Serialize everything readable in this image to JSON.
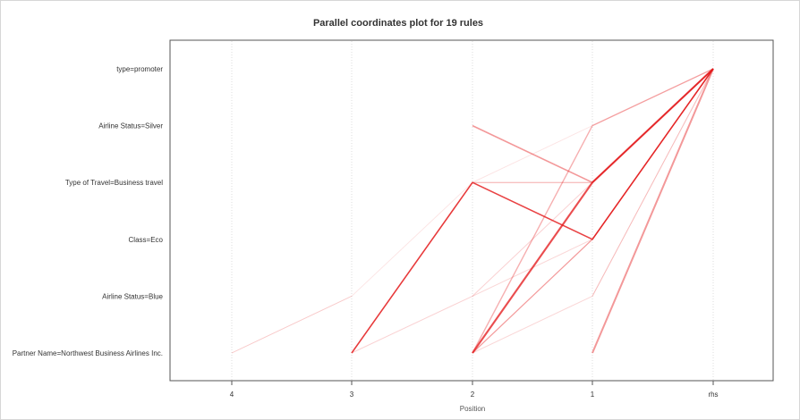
{
  "chart_data": {
    "type": "parallel-coordinates",
    "title": "Parallel coordinates plot for 19 rules",
    "xlabel": "Position",
    "x_positions": [
      "4",
      "3",
      "2",
      "1",
      "rhs"
    ],
    "y_items": [
      "Partner Name=Northwest Business Airlines Inc.",
      "Airline Status=Blue",
      "Class=Eco",
      "Type of Travel=Business travel",
      "Airline Status=Silver",
      "type=promoter"
    ],
    "grid": "vertical",
    "line_color": "#e41a1c",
    "rules": [
      {
        "path": [
          null,
          0,
          3,
          2,
          "rhs"
        ],
        "alpha": 0.75,
        "width": 1.6
      },
      {
        "path": [
          null,
          null,
          0,
          3,
          "rhs"
        ],
        "alpha": 0.7,
        "width": 2.2
      },
      {
        "path": [
          null,
          null,
          4,
          3,
          "rhs"
        ],
        "alpha": 0.45,
        "width": 1.6
      },
      {
        "path": [
          null,
          null,
          null,
          0,
          "rhs"
        ],
        "alpha": 0.45,
        "width": 2.0
      },
      {
        "path": [
          null,
          null,
          0,
          4,
          "rhs"
        ],
        "alpha": 0.35,
        "width": 1.4
      },
      {
        "path": [
          null,
          null,
          0,
          2,
          "rhs"
        ],
        "alpha": 0.3,
        "width": 1.3
      },
      {
        "path": [
          null,
          null,
          null,
          2,
          "rhs"
        ],
        "alpha": 0.3,
        "width": 1.3
      },
      {
        "path": [
          null,
          null,
          0,
          3,
          "rhs"
        ],
        "alpha": 0.3,
        "width": 1.2
      },
      {
        "path": [
          null,
          0,
          1,
          3,
          "rhs"
        ],
        "alpha": 0.2,
        "width": 1.0
      },
      {
        "path": [
          null,
          0,
          3,
          3,
          "rhs"
        ],
        "alpha": 0.25,
        "width": 1.0
      },
      {
        "path": [
          null,
          null,
          0,
          1,
          "rhs"
        ],
        "alpha": 0.18,
        "width": 1.0
      },
      {
        "path": [
          null,
          null,
          null,
          1,
          "rhs"
        ],
        "alpha": 0.15,
        "width": 1.0
      },
      {
        "path": [
          0,
          1,
          3,
          4,
          "rhs"
        ],
        "alpha": 0.12,
        "width": 0.9
      },
      {
        "path": [
          0,
          1,
          null,
          null,
          null
        ],
        "alpha": 0.14,
        "width": 0.9
      },
      {
        "path": [
          null,
          null,
          1,
          2,
          "rhs"
        ],
        "alpha": 0.18,
        "width": 1.0
      },
      {
        "path": [
          null,
          null,
          0,
          2,
          "rhs"
        ],
        "alpha": 0.2,
        "width": 1.0
      },
      {
        "path": [
          null,
          null,
          null,
          3,
          "rhs"
        ],
        "alpha": 0.2,
        "width": 1.0
      },
      {
        "path": [
          null,
          0,
          3,
          2,
          "rhs"
        ],
        "alpha": 0.3,
        "width": 1.2
      },
      {
        "path": [
          null,
          null,
          3,
          3,
          "rhs"
        ],
        "alpha": 0.15,
        "width": 1.0
      }
    ]
  }
}
